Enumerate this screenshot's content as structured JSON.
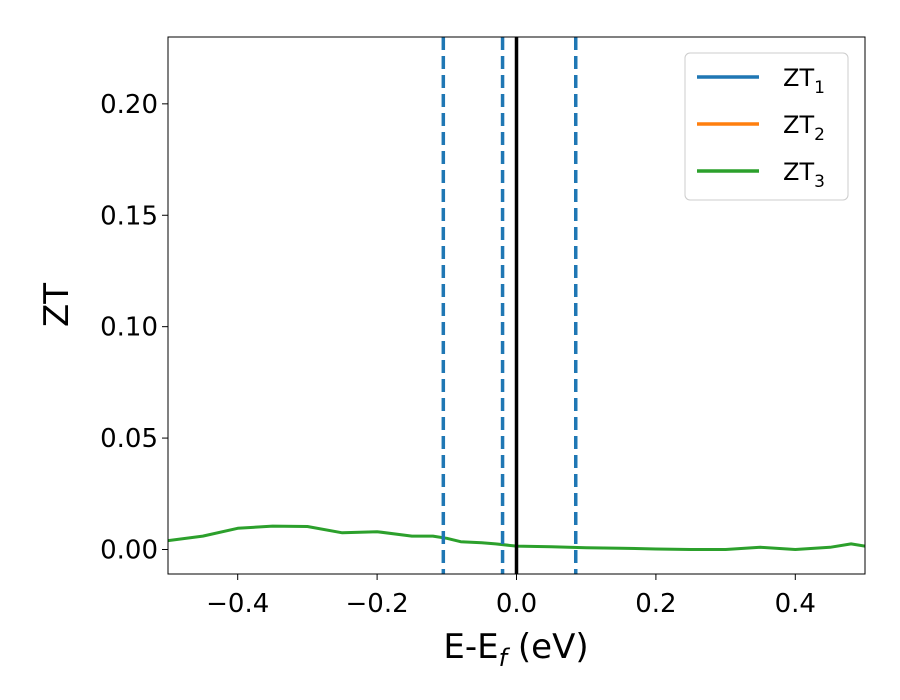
{
  "chart_data": {
    "type": "line",
    "xlabel": {
      "main": "E-E",
      "sub": "f",
      "suffix": " (eV)"
    },
    "ylabel": "ZT",
    "xlim": [
      -0.5,
      0.5
    ],
    "ylim": [
      -0.011,
      0.23
    ],
    "x_ticks": [
      -0.4,
      -0.2,
      0.0,
      0.2,
      0.4
    ],
    "x_tick_labels": [
      "−0.4",
      "−0.2",
      "0.0",
      "0.2",
      "0.4"
    ],
    "y_ticks": [
      0.0,
      0.05,
      0.1,
      0.15,
      0.2
    ],
    "y_tick_labels": [
      "0.00",
      "0.05",
      "0.10",
      "0.15",
      "0.20"
    ],
    "grid": false,
    "legend_position": "top-right",
    "series": [
      {
        "name": "ZT",
        "sub": "1",
        "color": "#1f77b4",
        "x": [],
        "y": []
      },
      {
        "name": "ZT",
        "sub": "2",
        "color": "#ff7f0e",
        "x": [],
        "y": []
      },
      {
        "name": "ZT",
        "sub": "3",
        "color": "#2ca02c",
        "x": [
          -0.5,
          -0.45,
          -0.4,
          -0.35,
          -0.3,
          -0.25,
          -0.2,
          -0.15,
          -0.12,
          -0.1,
          -0.08,
          -0.05,
          -0.03,
          0.0,
          0.05,
          0.1,
          0.15,
          0.2,
          0.25,
          0.3,
          0.35,
          0.4,
          0.45,
          0.48,
          0.5
        ],
        "y": [
          0.004,
          0.006,
          0.0095,
          0.0105,
          0.0103,
          0.0075,
          0.008,
          0.006,
          0.006,
          0.005,
          0.0035,
          0.003,
          0.0025,
          0.0015,
          0.0012,
          0.0008,
          0.0006,
          0.0002,
          0.0,
          0.0,
          0.001,
          0.0,
          0.001,
          0.0025,
          0.0015
        ]
      }
    ],
    "vlines": [
      {
        "x": -0.105,
        "color": "#1f77b4",
        "style": "dashed"
      },
      {
        "x": -0.02,
        "color": "#1f77b4",
        "style": "dashed"
      },
      {
        "x": 0.0,
        "color": "#000000",
        "style": "solid"
      },
      {
        "x": 0.085,
        "color": "#1f77b4",
        "style": "dashed"
      }
    ]
  }
}
